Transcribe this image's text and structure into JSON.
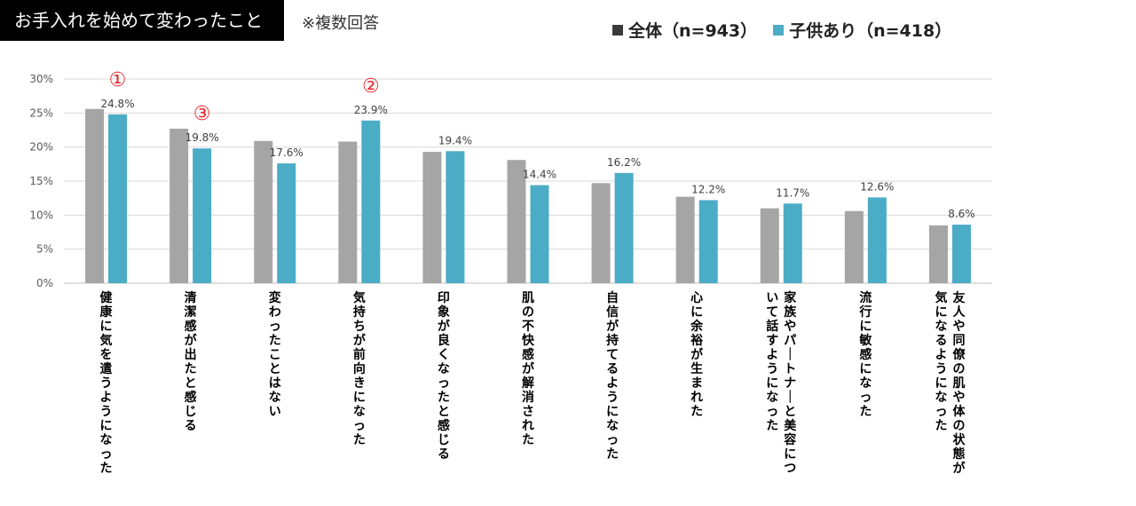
{
  "header": {
    "title": "お手入れを始めて変わったこと",
    "note": "※複数回答"
  },
  "colors": {
    "all": "#a5a5a5",
    "kids": "#4bacc6",
    "marker": "#e8262a"
  },
  "chart_data": {
    "type": "bar",
    "categories": [
      "健康に気を遣うようになった",
      "清潔感が出たと感じる",
      "変わったことはない",
      "気持ちが前向きになった",
      "印象が良くなったと感じる",
      "肌の不快感が解消された",
      "自信が持てるようになった",
      "心に余裕が生まれた",
      "家族やパートナーと美容について話すようになった",
      "流行に敏感になった",
      "友人や同僚の肌や体の状態が気になるようになった"
    ],
    "series": [
      {
        "name": "全体（n=943）",
        "values": [
          25.6,
          22.7,
          20.9,
          20.8,
          19.3,
          18.1,
          14.7,
          12.7,
          11.0,
          10.6,
          8.5
        ]
      },
      {
        "name": "子供あり（n=418）",
        "values": [
          24.8,
          19.8,
          17.6,
          23.9,
          19.4,
          14.4,
          16.2,
          12.2,
          11.7,
          12.6,
          8.6
        ]
      }
    ],
    "data_labels": [
      "24.8%",
      "19.8%",
      "17.6%",
      "23.9%",
      "19.4%",
      "14.4%",
      "16.2%",
      "12.2%",
      "11.7%",
      "12.6%",
      "8.6%"
    ],
    "y_ticks": [
      "0%",
      "5%",
      "10%",
      "15%",
      "20%",
      "25%",
      "30%"
    ],
    "ylim": [
      0,
      30
    ],
    "grid": true,
    "legend_position": "top-right",
    "rank_markers": [
      {
        "category_index": 0,
        "label": "①"
      },
      {
        "category_index": 3,
        "label": "②"
      },
      {
        "category_index": 1,
        "label": "③"
      }
    ]
  }
}
